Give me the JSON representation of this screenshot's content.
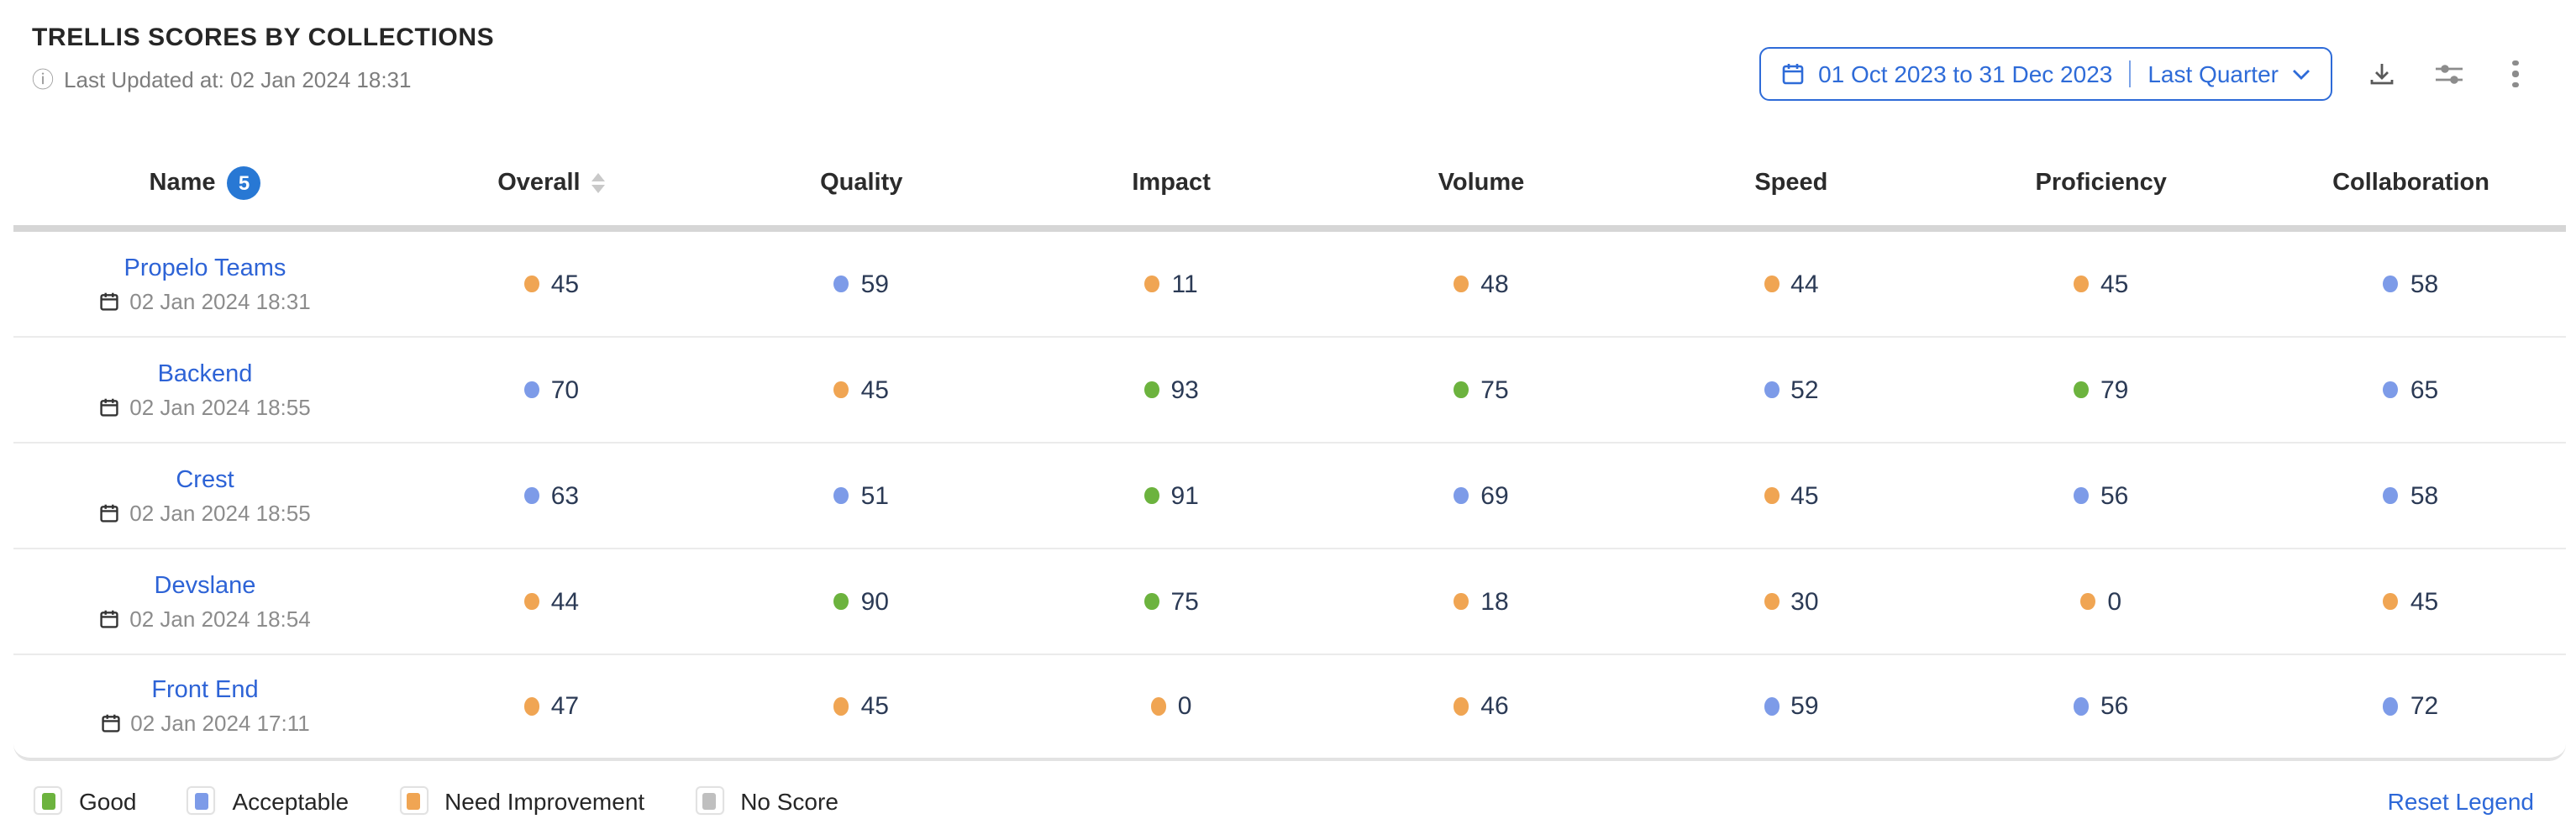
{
  "header": {
    "title": "TRELLIS SCORES BY COLLECTIONS",
    "last_updated": "Last Updated at: 02 Jan 2024 18:31",
    "date_range_text": "01 Oct 2023 to 31 Dec 2023",
    "date_preset_label": "Last Quarter"
  },
  "columns": [
    {
      "label": "Name",
      "badge": "5"
    },
    {
      "label": "Overall"
    },
    {
      "label": "Quality"
    },
    {
      "label": "Impact"
    },
    {
      "label": "Volume"
    },
    {
      "label": "Speed"
    },
    {
      "label": "Proficiency"
    },
    {
      "label": "Collaboration"
    }
  ],
  "rows": [
    {
      "name": "Propelo Teams",
      "updated": "02 Jan 2024 18:31",
      "scores": [
        {
          "v": "45",
          "s": "need_improvement"
        },
        {
          "v": "59",
          "s": "acceptable"
        },
        {
          "v": "11",
          "s": "need_improvement"
        },
        {
          "v": "48",
          "s": "need_improvement"
        },
        {
          "v": "44",
          "s": "need_improvement"
        },
        {
          "v": "45",
          "s": "need_improvement"
        },
        {
          "v": "58",
          "s": "acceptable"
        }
      ]
    },
    {
      "name": "Backend",
      "updated": "02 Jan 2024 18:55",
      "scores": [
        {
          "v": "70",
          "s": "acceptable"
        },
        {
          "v": "45",
          "s": "need_improvement"
        },
        {
          "v": "93",
          "s": "good"
        },
        {
          "v": "75",
          "s": "good"
        },
        {
          "v": "52",
          "s": "acceptable"
        },
        {
          "v": "79",
          "s": "good"
        },
        {
          "v": "65",
          "s": "acceptable"
        }
      ]
    },
    {
      "name": "Crest",
      "updated": "02 Jan 2024 18:55",
      "scores": [
        {
          "v": "63",
          "s": "acceptable"
        },
        {
          "v": "51",
          "s": "acceptable"
        },
        {
          "v": "91",
          "s": "good"
        },
        {
          "v": "69",
          "s": "acceptable"
        },
        {
          "v": "45",
          "s": "need_improvement"
        },
        {
          "v": "56",
          "s": "acceptable"
        },
        {
          "v": "58",
          "s": "acceptable"
        }
      ]
    },
    {
      "name": "Devslane",
      "updated": "02 Jan 2024 18:54",
      "scores": [
        {
          "v": "44",
          "s": "need_improvement"
        },
        {
          "v": "90",
          "s": "good"
        },
        {
          "v": "75",
          "s": "good"
        },
        {
          "v": "18",
          "s": "need_improvement"
        },
        {
          "v": "30",
          "s": "need_improvement"
        },
        {
          "v": "0",
          "s": "need_improvement"
        },
        {
          "v": "45",
          "s": "need_improvement"
        }
      ]
    },
    {
      "name": "Front End",
      "updated": "02 Jan 2024 17:11",
      "scores": [
        {
          "v": "47",
          "s": "need_improvement"
        },
        {
          "v": "45",
          "s": "need_improvement"
        },
        {
          "v": "0",
          "s": "need_improvement"
        },
        {
          "v": "46",
          "s": "need_improvement"
        },
        {
          "v": "59",
          "s": "acceptable"
        },
        {
          "v": "56",
          "s": "acceptable"
        },
        {
          "v": "72",
          "s": "acceptable"
        }
      ]
    }
  ],
  "legend": {
    "items": [
      {
        "label": "Good",
        "s": "good"
      },
      {
        "label": "Acceptable",
        "s": "acceptable"
      },
      {
        "label": "Need Improvement",
        "s": "need_improvement"
      },
      {
        "label": "No Score",
        "s": "no_score"
      }
    ],
    "reset_label": "Reset Legend"
  },
  "colors": {
    "good": "#6CB33E",
    "acceptable": "#7D9BE8",
    "need_improvement": "#F0A553",
    "no_score": "#BFBFBF",
    "accent_blue": "#2E6BD8"
  }
}
